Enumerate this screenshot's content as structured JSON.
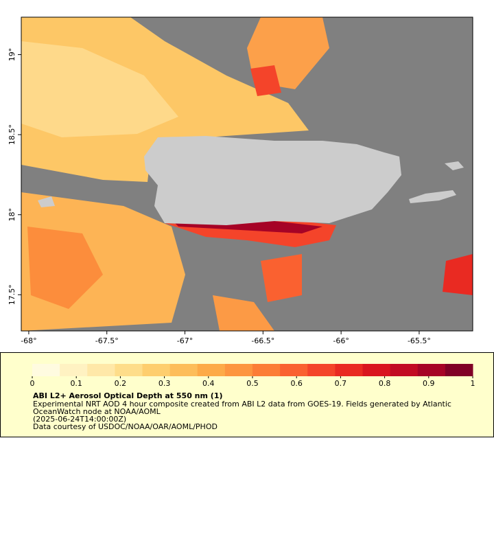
{
  "map": {
    "xlim": [
      -68.048,
      -65.157
    ],
    "ylim": [
      17.274,
      19.234
    ],
    "xticks": [
      {
        "value": -68,
        "label": "-68°"
      },
      {
        "value": -67.5,
        "label": "-67.5°"
      },
      {
        "value": -67,
        "label": "-67°"
      },
      {
        "value": -66.5,
        "label": "-66.5°"
      },
      {
        "value": -66,
        "label": "-66°"
      },
      {
        "value": -65.5,
        "label": "-65.5°"
      }
    ],
    "yticks": [
      {
        "value": 19,
        "label": "19°"
      },
      {
        "value": 18.5,
        "label": "18.5°"
      },
      {
        "value": 18,
        "label": "18°"
      },
      {
        "value": 17.5,
        "label": "17.5°"
      }
    ]
  },
  "colorbar": {
    "lim": [
      0,
      1
    ],
    "ticks": [
      0,
      0.1,
      0.2,
      0.3,
      0.4,
      0.5,
      0.6,
      0.7,
      0.8,
      0.9,
      1
    ],
    "colors": [
      "#fffbe0",
      "#fff2c2",
      "#ffe8a8",
      "#fedd8a",
      "#fece6e",
      "#fdbd5a",
      "#fdaa48",
      "#fd953f",
      "#fc7d36",
      "#fa6130",
      "#f4442a",
      "#e92a22",
      "#d9151f",
      "#c20a23",
      "#a60326",
      "#800026"
    ]
  },
  "caption": {
    "title": "ABI L2+ Aerosol Optical Depth at 550 nm (1)",
    "lines": [
      "Experimental NRT AOD 4 hour composite created from ABI L2 data from GOES-19. Fields generated by Atlantic",
      "OceanWatch node at NOAA/AOML",
      "(2025-06-24T14:00:00Z)",
      "Data courtesy of USDOC/NOAA/OAR/AOML/PHOD"
    ]
  }
}
